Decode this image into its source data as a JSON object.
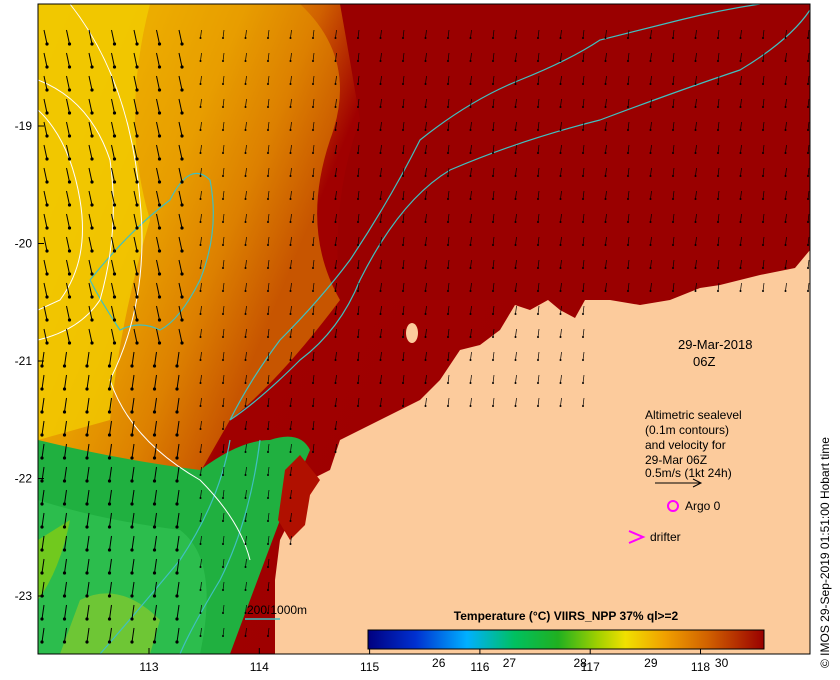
{
  "map": {
    "longitude_ticks": [
      "113",
      "114",
      "115",
      "116",
      "117",
      "118"
    ],
    "latitude_ticks": [
      "-19",
      "-20",
      "-21",
      "-22",
      "-23"
    ],
    "land_color": "#fccb9c",
    "warm_color": "#9a0000"
  },
  "date_label": {
    "line1": "29-Mar-2018",
    "line2": "06Z"
  },
  "legend": {
    "lines": [
      "Altimetric sealevel",
      "(0.1m contours)",
      "and velocity for",
      "29-Mar 06Z",
      "0.5m/s (1kt 24h)"
    ],
    "argo_label": "Argo 0",
    "drifter_label": "drifter",
    "marker_color": "#ff00ff"
  },
  "depth_legend": {
    "label": "200  1000m",
    "color": "#40c0c0"
  },
  "colorbar": {
    "title": "Temperature (°C) VIIRS_NPP 37% ql>=2",
    "ticks": [
      "26",
      "27",
      "28",
      "29",
      "30"
    ],
    "min": 25.0,
    "max": 30.6,
    "tick_values": [
      26,
      27,
      28,
      29,
      30
    ]
  },
  "credit": "© IMOS 29-Sep-2019 01:51:00 Hobart time"
}
